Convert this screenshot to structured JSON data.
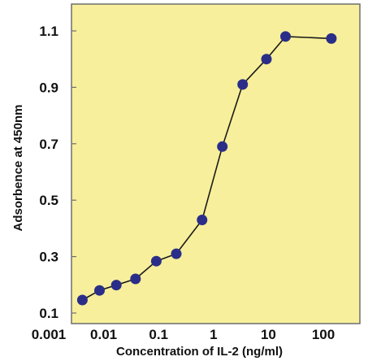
{
  "colors": {
    "plot_background": "#f7ef9b",
    "plot_border": "#6e6e6e",
    "line": "#1a1a1a",
    "marker": "#2a2e88"
  },
  "chart_data": {
    "type": "line",
    "title": "",
    "xlabel": "Concentration of IL-2 (ng/ml)",
    "ylabel": "Adsorbence at 450nm",
    "x_scale": "log",
    "xlim": [
      0.001,
      400
    ],
    "ylim": [
      0.08,
      1.2
    ],
    "x_ticks": [
      {
        "value": 0.001,
        "label": "0.001"
      },
      {
        "value": 0.01,
        "label": "0.01"
      },
      {
        "value": 0.1,
        "label": "0.1"
      },
      {
        "value": 1,
        "label": "1"
      },
      {
        "value": 10,
        "label": "10"
      },
      {
        "value": 100,
        "label": "100"
      }
    ],
    "y_ticks": [
      {
        "value": 0.1,
        "label": "0.1"
      },
      {
        "value": 0.3,
        "label": "0.3"
      },
      {
        "value": 0.5,
        "label": "0.5"
      },
      {
        "value": 0.7,
        "label": "0.7"
      },
      {
        "value": 0.9,
        "label": "0.9"
      },
      {
        "value": 1.1,
        "label": "1.1"
      }
    ],
    "grid": false,
    "legend": "none",
    "series": [
      {
        "x": [
          0.0041,
          0.0084,
          0.017,
          0.038,
          0.091,
          0.21,
          0.62,
          1.45,
          3.4,
          9.2,
          20.5,
          140
        ],
        "y": [
          0.146,
          0.18,
          0.199,
          0.221,
          0.284,
          0.31,
          0.43,
          0.69,
          0.91,
          1.0,
          1.08,
          1.073
        ]
      }
    ]
  }
}
